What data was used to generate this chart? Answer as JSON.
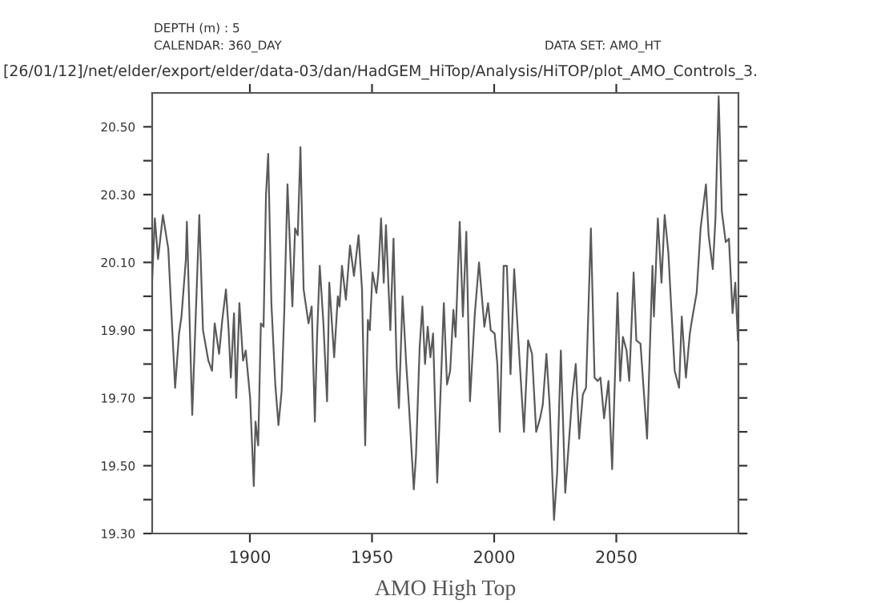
{
  "chart_data": {
    "type": "line",
    "xlabel": "AMO High Top",
    "annotations": [
      "DEPTH (m) : 5",
      "CALENDAR: 360_DAY",
      "DATA SET: AMO_HT",
      "[26/01/12]/net/elder/export/elder/data-03/dan/HadGEM_HiTop/Analysis/HiTOP/plot_AMO_Controls_3."
    ],
    "xlim": [
      1860,
      2100
    ],
    "xticks": [
      1900,
      1950,
      2000,
      2050
    ],
    "ylim": [
      19.3,
      20.6
    ],
    "yticks": [
      {
        "value": 19.3,
        "label": "19.30"
      },
      {
        "value": 19.4,
        "label": null
      },
      {
        "value": 19.5,
        "label": "19.50"
      },
      {
        "value": 19.6,
        "label": null
      },
      {
        "value": 19.7,
        "label": "19.70"
      },
      {
        "value": 19.8,
        "label": null
      },
      {
        "value": 19.9,
        "label": "19.90"
      },
      {
        "value": 20.0,
        "label": null
      },
      {
        "value": 20.1,
        "label": "20.10"
      },
      {
        "value": 20.2,
        "label": null
      },
      {
        "value": 20.3,
        "label": "20.30"
      },
      {
        "value": 20.4,
        "label": null
      },
      {
        "value": 20.5,
        "label": "20.50"
      }
    ],
    "grid": false,
    "legend": false,
    "marker": "none",
    "line_style": "solid",
    "series": [
      {
        "color": "#5a5a5a",
        "x": [
          1860.0,
          1861.1,
          1862.4,
          1864.4,
          1866.6,
          1868.3,
          1869.4,
          1871.0,
          1872.0,
          1873.8,
          1874.2,
          1876.4,
          1879.3,
          1880.8,
          1883.0,
          1884.5,
          1885.6,
          1887.4,
          1888.7,
          1890.2,
          1891.3,
          1892.2,
          1893.5,
          1894.4,
          1895.7,
          1897.2,
          1898.3,
          1900.1,
          1901.6,
          1902.3,
          1903.4,
          1904.5,
          1905.6,
          1906.6,
          1907.5,
          1908.8,
          1910.4,
          1911.7,
          1913.0,
          1914.1,
          1915.4,
          1917.4,
          1918.5,
          1919.6,
          1920.7,
          1922.0,
          1924.0,
          1925.3,
          1926.6,
          1927.5,
          1928.6,
          1930.1,
          1931.6,
          1932.5,
          1934.5,
          1936.0,
          1936.7,
          1937.7,
          1939.3,
          1941.0,
          1942.6,
          1944.5,
          1945.9,
          1947.2,
          1948.3,
          1949.1,
          1950.2,
          1951.8,
          1952.6,
          1953.7,
          1954.8,
          1955.7,
          1957.5,
          1958.8,
          1960.1,
          1961.0,
          1962.5,
          1964.0,
          1965.1,
          1967.1,
          1968.0,
          1969.5,
          1970.6,
          1971.7,
          1972.8,
          1973.9,
          1975.0,
          1976.7,
          1979.4,
          1980.7,
          1982.0,
          1983.3,
          1984.2,
          1985.9,
          1987.2,
          1988.6,
          1990.1,
          1992.1,
          1993.8,
          1996.0,
          1997.5,
          1998.6,
          2000.2,
          2001.3,
          2002.3,
          2003.9,
          2005.2,
          2006.7,
          2008.2,
          2010.0,
          2012.2,
          2013.9,
          2015.5,
          2017.2,
          2018.8,
          2019.9,
          2021.4,
          2022.7,
          2024.5,
          2025.8,
          2027.3,
          2029.1,
          2030.8,
          2031.9,
          2033.4,
          2034.8,
          2036.3,
          2037.6,
          2039.6,
          2041.1,
          2042.4,
          2043.5,
          2045.0,
          2046.8,
          2048.3,
          2050.5,
          2051.6,
          2052.7,
          2054.2,
          2055.3,
          2057.1,
          2058.2,
          2059.9,
          2062.6,
          2064.8,
          2065.4,
          2067.0,
          2068.5,
          2069.8,
          2071.3,
          2072.4,
          2073.9,
          2075.7,
          2076.8,
          2078.5,
          2080.1,
          2081.2,
          2082.9,
          2084.5,
          2086.7,
          2087.8,
          2089.5,
          2090.6,
          2091.9,
          2093.2,
          2094.8,
          2096.1,
          2097.6,
          2098.7,
          2099.8
        ],
        "values": [
          20.05,
          20.23,
          20.11,
          20.24,
          20.14,
          19.89,
          19.73,
          19.89,
          19.94,
          20.11,
          20.22,
          19.65,
          20.24,
          19.9,
          19.81,
          19.78,
          19.92,
          19.83,
          19.93,
          20.02,
          19.9,
          19.76,
          19.95,
          19.7,
          19.98,
          19.81,
          19.84,
          19.7,
          19.44,
          19.63,
          19.56,
          19.92,
          19.91,
          20.3,
          20.42,
          19.98,
          19.74,
          19.62,
          19.72,
          19.96,
          20.33,
          19.97,
          20.2,
          20.18,
          20.44,
          20.02,
          19.92,
          19.97,
          19.63,
          19.88,
          20.09,
          19.92,
          19.69,
          20.04,
          19.82,
          20.0,
          19.97,
          20.09,
          19.99,
          20.15,
          20.06,
          20.18,
          20.02,
          19.56,
          19.93,
          19.9,
          20.07,
          20.01,
          20.07,
          20.23,
          20.04,
          20.21,
          19.9,
          20.17,
          19.79,
          19.67,
          20.0,
          19.8,
          19.68,
          19.43,
          19.53,
          19.85,
          19.97,
          19.8,
          19.91,
          19.82,
          19.89,
          19.45,
          19.98,
          19.74,
          19.78,
          19.96,
          19.88,
          20.22,
          19.94,
          20.19,
          19.69,
          19.95,
          20.1,
          19.91,
          19.98,
          19.9,
          19.89,
          19.8,
          19.6,
          20.09,
          20.09,
          19.77,
          20.08,
          19.86,
          19.6,
          19.87,
          19.83,
          19.6,
          19.64,
          19.68,
          19.83,
          19.68,
          19.34,
          19.48,
          19.84,
          19.42,
          19.59,
          19.7,
          19.8,
          19.58,
          19.71,
          19.73,
          20.2,
          19.76,
          19.75,
          19.76,
          19.64,
          19.75,
          19.49,
          20.01,
          19.75,
          19.88,
          19.84,
          19.75,
          20.07,
          19.87,
          19.86,
          19.58,
          20.09,
          19.94,
          20.23,
          20.04,
          20.24,
          20.13,
          19.98,
          19.78,
          19.73,
          19.94,
          19.76,
          19.89,
          19.94,
          20.01,
          20.2,
          20.33,
          20.18,
          20.08,
          20.23,
          20.59,
          20.25,
          20.16,
          20.17,
          19.95,
          20.04,
          19.87
        ]
      }
    ]
  }
}
